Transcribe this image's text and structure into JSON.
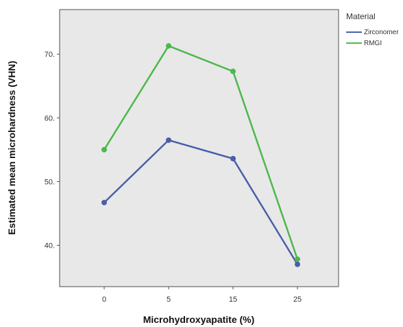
{
  "chart_data": {
    "type": "line",
    "categories": [
      "0",
      "5",
      "15",
      "25"
    ],
    "xlabel": "Microhydroxyapatite (%)",
    "ylabel": "Estimated mean microhardness (VHN)",
    "ylim": [
      33.5,
      77
    ],
    "yticks": [
      40,
      50,
      60,
      70
    ],
    "grid": false,
    "legend": {
      "title": "Material",
      "placement": "right"
    },
    "series": [
      {
        "name": "Zirconomer",
        "color": "#4a5fa8",
        "values": [
          46.7,
          56.5,
          53.6,
          37.0
        ]
      },
      {
        "name": "RMGI",
        "color": "#4cb84c",
        "values": [
          55.0,
          71.3,
          67.3,
          37.8
        ]
      }
    ]
  },
  "colors": {
    "plot_background": "#e8e8e8",
    "frame": "#4d4d4d"
  }
}
